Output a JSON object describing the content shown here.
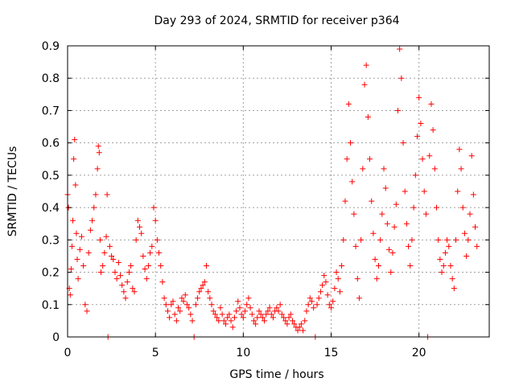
{
  "chart_data": {
    "type": "scatter",
    "title": "Day 293 of 2024, SRMTID for receiver p364",
    "xlabel": "GPS time / hours",
    "ylabel": "SRMTID / TECUs",
    "xlim": [
      0,
      24
    ],
    "ylim": [
      0,
      0.9
    ],
    "xticks": [
      0,
      5,
      10,
      15,
      20
    ],
    "xtick_labels": [
      "0",
      "5",
      "10",
      "15",
      "20"
    ],
    "yticks": [
      0,
      0.1,
      0.2,
      0.3,
      0.4,
      0.5,
      0.6,
      0.7,
      0.8,
      0.9
    ],
    "ytick_labels": [
      "0",
      "0.1",
      "0.2",
      "0.3",
      "0.4",
      "0.5",
      "0.6",
      "0.7",
      "0.8",
      "0.9"
    ],
    "grid": true,
    "marker": "plus",
    "series": [
      {
        "name": "SRMTID",
        "color": "#ff0000",
        "points": [
          [
            0.0,
            0.44
          ],
          [
            0.05,
            0.4
          ],
          [
            0.1,
            0.15
          ],
          [
            0.15,
            0.13
          ],
          [
            0.2,
            0.21
          ],
          [
            0.25,
            0.28
          ],
          [
            0.3,
            0.36
          ],
          [
            0.35,
            0.55
          ],
          [
            0.4,
            0.61
          ],
          [
            0.45,
            0.47
          ],
          [
            0.5,
            0.32
          ],
          [
            0.55,
            0.24
          ],
          [
            0.6,
            0.18
          ],
          [
            0.7,
            0.27
          ],
          [
            0.8,
            0.31
          ],
          [
            0.9,
            0.22
          ],
          [
            1.0,
            0.1
          ],
          [
            1.1,
            0.08
          ],
          [
            1.2,
            0.26
          ],
          [
            1.3,
            0.33
          ],
          [
            1.4,
            0.36
          ],
          [
            1.5,
            0.4
          ],
          [
            1.6,
            0.44
          ],
          [
            1.7,
            0.52
          ],
          [
            1.75,
            0.59
          ],
          [
            1.8,
            0.57
          ],
          [
            1.85,
            0.3
          ],
          [
            1.9,
            0.2
          ],
          [
            2.0,
            0.22
          ],
          [
            2.1,
            0.26
          ],
          [
            2.2,
            0.31
          ],
          [
            2.25,
            0.44
          ],
          [
            2.3,
            0.0
          ],
          [
            2.4,
            0.28
          ],
          [
            2.5,
            0.25
          ],
          [
            2.6,
            0.24
          ],
          [
            2.7,
            0.2
          ],
          [
            2.8,
            0.18
          ],
          [
            2.9,
            0.23
          ],
          [
            3.0,
            0.19
          ],
          [
            3.1,
            0.16
          ],
          [
            3.2,
            0.14
          ],
          [
            3.3,
            0.12
          ],
          [
            3.4,
            0.17
          ],
          [
            3.5,
            0.2
          ],
          [
            3.6,
            0.22
          ],
          [
            3.7,
            0.15
          ],
          [
            3.8,
            0.14
          ],
          [
            3.9,
            0.3
          ],
          [
            4.0,
            0.36
          ],
          [
            4.1,
            0.34
          ],
          [
            4.2,
            0.32
          ],
          [
            4.3,
            0.25
          ],
          [
            4.4,
            0.21
          ],
          [
            4.5,
            0.18
          ],
          [
            4.6,
            0.22
          ],
          [
            4.7,
            0.26
          ],
          [
            4.8,
            0.28
          ],
          [
            4.9,
            0.4
          ],
          [
            5.0,
            0.36
          ],
          [
            5.1,
            0.3
          ],
          [
            5.2,
            0.26
          ],
          [
            5.3,
            0.22
          ],
          [
            5.4,
            0.17
          ],
          [
            5.5,
            0.12
          ],
          [
            5.6,
            0.1
          ],
          [
            5.7,
            0.08
          ],
          [
            5.8,
            0.06
          ],
          [
            5.9,
            0.1
          ],
          [
            6.0,
            0.11
          ],
          [
            6.1,
            0.07
          ],
          [
            6.2,
            0.05
          ],
          [
            6.3,
            0.09
          ],
          [
            6.4,
            0.08
          ],
          [
            6.5,
            0.12
          ],
          [
            6.6,
            0.11
          ],
          [
            6.7,
            0.13
          ],
          [
            6.8,
            0.1
          ],
          [
            6.9,
            0.09
          ],
          [
            7.0,
            0.07
          ],
          [
            7.1,
            0.05
          ],
          [
            7.2,
            0.0
          ],
          [
            7.3,
            0.1
          ],
          [
            7.4,
            0.12
          ],
          [
            7.5,
            0.14
          ],
          [
            7.6,
            0.15
          ],
          [
            7.7,
            0.16
          ],
          [
            7.8,
            0.17
          ],
          [
            7.9,
            0.22
          ],
          [
            8.0,
            0.14
          ],
          [
            8.1,
            0.12
          ],
          [
            8.2,
            0.1
          ],
          [
            8.3,
            0.08
          ],
          [
            8.4,
            0.07
          ],
          [
            8.5,
            0.06
          ],
          [
            8.6,
            0.05
          ],
          [
            8.7,
            0.09
          ],
          [
            8.8,
            0.07
          ],
          [
            8.9,
            0.05
          ],
          [
            9.0,
            0.04
          ],
          [
            9.1,
            0.06
          ],
          [
            9.2,
            0.07
          ],
          [
            9.3,
            0.05
          ],
          [
            9.4,
            0.03
          ],
          [
            9.5,
            0.06
          ],
          [
            9.6,
            0.08
          ],
          [
            9.7,
            0.11
          ],
          [
            9.8,
            0.09
          ],
          [
            9.9,
            0.07
          ],
          [
            10.0,
            0.06
          ],
          [
            10.1,
            0.08
          ],
          [
            10.2,
            0.1
          ],
          [
            10.3,
            0.12
          ],
          [
            10.4,
            0.09
          ],
          [
            10.5,
            0.07
          ],
          [
            10.6,
            0.05
          ],
          [
            10.7,
            0.04
          ],
          [
            10.8,
            0.06
          ],
          [
            10.9,
            0.08
          ],
          [
            11.0,
            0.07
          ],
          [
            11.1,
            0.06
          ],
          [
            11.2,
            0.05
          ],
          [
            11.3,
            0.07
          ],
          [
            11.4,
            0.08
          ],
          [
            11.5,
            0.09
          ],
          [
            11.6,
            0.07
          ],
          [
            11.7,
            0.06
          ],
          [
            11.8,
            0.08
          ],
          [
            11.9,
            0.09
          ],
          [
            12.0,
            0.08
          ],
          [
            12.1,
            0.1
          ],
          [
            12.2,
            0.07
          ],
          [
            12.3,
            0.06
          ],
          [
            12.4,
            0.05
          ],
          [
            12.5,
            0.04
          ],
          [
            12.6,
            0.06
          ],
          [
            12.7,
            0.07
          ],
          [
            12.8,
            0.05
          ],
          [
            12.9,
            0.04
          ],
          [
            13.0,
            0.03
          ],
          [
            13.1,
            0.02
          ],
          [
            13.2,
            0.03
          ],
          [
            13.3,
            0.04
          ],
          [
            13.4,
            0.02
          ],
          [
            13.5,
            0.05
          ],
          [
            13.6,
            0.08
          ],
          [
            13.7,
            0.1
          ],
          [
            13.8,
            0.12
          ],
          [
            13.9,
            0.11
          ],
          [
            14.0,
            0.09
          ],
          [
            14.1,
            0.0
          ],
          [
            14.2,
            0.1
          ],
          [
            14.3,
            0.12
          ],
          [
            14.4,
            0.14
          ],
          [
            14.5,
            0.16
          ],
          [
            14.6,
            0.19
          ],
          [
            14.7,
            0.17
          ],
          [
            14.8,
            0.13
          ],
          [
            14.9,
            0.1
          ],
          [
            15.0,
            0.09
          ],
          [
            15.1,
            0.11
          ],
          [
            15.2,
            0.15
          ],
          [
            15.3,
            0.2
          ],
          [
            15.4,
            0.18
          ],
          [
            15.5,
            0.14
          ],
          [
            15.6,
            0.22
          ],
          [
            15.7,
            0.3
          ],
          [
            15.8,
            0.42
          ],
          [
            15.9,
            0.55
          ],
          [
            16.0,
            0.72
          ],
          [
            16.1,
            0.6
          ],
          [
            16.2,
            0.48
          ],
          [
            16.3,
            0.38
          ],
          [
            16.4,
            0.28
          ],
          [
            16.5,
            0.18
          ],
          [
            16.6,
            0.12
          ],
          [
            16.7,
            0.3
          ],
          [
            16.8,
            0.52
          ],
          [
            16.9,
            0.78
          ],
          [
            17.0,
            0.84
          ],
          [
            17.1,
            0.68
          ],
          [
            17.2,
            0.55
          ],
          [
            17.3,
            0.42
          ],
          [
            17.4,
            0.32
          ],
          [
            17.5,
            0.24
          ],
          [
            17.6,
            0.18
          ],
          [
            17.7,
            0.22
          ],
          [
            17.8,
            0.3
          ],
          [
            17.9,
            0.38
          ],
          [
            18.0,
            0.52
          ],
          [
            18.1,
            0.46
          ],
          [
            18.2,
            0.35
          ],
          [
            18.3,
            0.27
          ],
          [
            18.4,
            0.2
          ],
          [
            18.5,
            0.26
          ],
          [
            18.6,
            0.34
          ],
          [
            18.7,
            0.41
          ],
          [
            18.8,
            0.7
          ],
          [
            18.9,
            0.89
          ],
          [
            19.0,
            0.8
          ],
          [
            19.1,
            0.6
          ],
          [
            19.2,
            0.45
          ],
          [
            19.3,
            0.35
          ],
          [
            19.4,
            0.28
          ],
          [
            19.5,
            0.22
          ],
          [
            19.6,
            0.3
          ],
          [
            19.7,
            0.4
          ],
          [
            19.8,
            0.5
          ],
          [
            19.9,
            0.62
          ],
          [
            20.0,
            0.74
          ],
          [
            20.1,
            0.66
          ],
          [
            20.2,
            0.55
          ],
          [
            20.3,
            0.45
          ],
          [
            20.4,
            0.38
          ],
          [
            20.5,
            0.0
          ],
          [
            20.6,
            0.56
          ],
          [
            20.7,
            0.72
          ],
          [
            20.8,
            0.64
          ],
          [
            20.9,
            0.52
          ],
          [
            21.0,
            0.4
          ],
          [
            21.1,
            0.3
          ],
          [
            21.2,
            0.24
          ],
          [
            21.3,
            0.2
          ],
          [
            21.4,
            0.22
          ],
          [
            21.5,
            0.26
          ],
          [
            21.6,
            0.3
          ],
          [
            21.7,
            0.28
          ],
          [
            21.8,
            0.22
          ],
          [
            21.9,
            0.18
          ],
          [
            22.0,
            0.15
          ],
          [
            22.1,
            0.3
          ],
          [
            22.2,
            0.45
          ],
          [
            22.3,
            0.58
          ],
          [
            22.4,
            0.52
          ],
          [
            22.5,
            0.4
          ],
          [
            22.6,
            0.32
          ],
          [
            22.7,
            0.25
          ],
          [
            22.8,
            0.3
          ],
          [
            22.9,
            0.38
          ],
          [
            23.0,
            0.56
          ],
          [
            23.1,
            0.44
          ],
          [
            23.2,
            0.34
          ],
          [
            23.3,
            0.28
          ]
        ]
      }
    ]
  }
}
